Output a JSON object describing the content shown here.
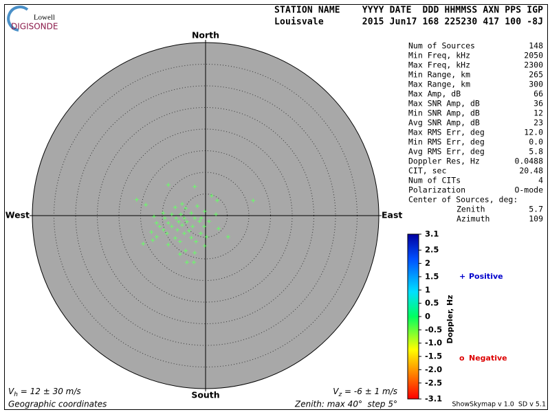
{
  "logo": {
    "line1": "Lowell",
    "line2": "DIGISONDE"
  },
  "header": {
    "line1": "STATION NAME    YYYY DATE  DDD HHMMSS AXN PPS IGP",
    "line2": "Louisvale       2015 Jun17 168 225230 417 100 -8J"
  },
  "stats": {
    "rows": [
      {
        "label": "Num of Sources",
        "value": "148"
      },
      {
        "label": "Min Freq, kHz",
        "value": "2050"
      },
      {
        "label": "Max Freq, kHz",
        "value": "2300"
      },
      {
        "label": "Min Range, km",
        "value": "265"
      },
      {
        "label": "Max Range, km",
        "value": "300"
      },
      {
        "label": "Max Amp, dB",
        "value": "66"
      },
      {
        "label": "Max SNR Amp, dB",
        "value": "36"
      },
      {
        "label": "Min SNR Amp, dB",
        "value": "12"
      },
      {
        "label": "Avg SNR Amp, dB",
        "value": "23"
      },
      {
        "label": "Max RMS Err, deg",
        "value": "12.0"
      },
      {
        "label": "Min RMS Err, deg",
        "value": "0.0"
      },
      {
        "label": "Avg RMS Err, deg",
        "value": "5.8"
      },
      {
        "label": "Doppler Res, Hz",
        "value": "0.0488"
      },
      {
        "label": "CIT, sec",
        "value": "20.48"
      },
      {
        "label": "Num of CITs",
        "value": "4"
      },
      {
        "label": "Polarization",
        "value": "O-mode"
      }
    ],
    "center": {
      "label": "Center of Sources, deg:",
      "rows": [
        {
          "label": "Zenith",
          "value": "5.7"
        },
        {
          "label": "Azimuth",
          "value": "109"
        }
      ]
    }
  },
  "chart_data": {
    "type": "scatter",
    "directions": {
      "north": "North",
      "south": "South",
      "east": "East",
      "west": "West"
    },
    "rlim": [
      0,
      40
    ],
    "rticks": [
      5,
      10,
      15,
      20,
      25,
      30,
      35
    ],
    "series": [
      {
        "color": "#66ff66",
        "marker": "+",
        "x": [
          -8.6,
          -2.5,
          1.4,
          2.7,
          -15.9,
          -13.8,
          11.0,
          -5.4,
          -1.9,
          -7.0,
          -4.6,
          -0.2,
          -9.8,
          -7.8,
          -5.7,
          -3.3,
          2.4,
          -11.9,
          -9.4,
          -6.8,
          -4.9,
          -2.5,
          -1.0,
          -11.3,
          -8.6,
          -6.2,
          -4.3,
          -1.4,
          -10.6,
          -7.8,
          -5.4,
          -3.0,
          -0.3,
          -9.7,
          -6.5,
          -3.8,
          -12.5,
          -8.9,
          -4.9,
          -1.1,
          5.2,
          -11.3,
          -7.0,
          -3.3,
          0.2,
          -12.2,
          -5.9,
          -2.2,
          -14.4,
          -8.6,
          -0.2,
          -4.6,
          -2.5,
          -5.9,
          -4.3,
          -2.7,
          3.0,
          0.8
        ],
        "y": [
          7.1,
          6.7,
          4.6,
          3.5,
          3.7,
          2.5,
          3.5,
          2.7,
          2.2,
          1.9,
          1.7,
          1.0,
          0.6,
          0.3,
          0.3,
          0.6,
          0.3,
          -0.2,
          -0.6,
          -0.6,
          -0.6,
          -0.6,
          -0.6,
          -1.7,
          -1.7,
          -1.4,
          -1.4,
          -1.3,
          -2.5,
          -2.5,
          -2.2,
          -2.5,
          -2.5,
          -3.3,
          -3.3,
          -3.5,
          -3.8,
          -4.1,
          -4.1,
          -4.1,
          -4.9,
          -4.9,
          -5.2,
          -5.1,
          -4.9,
          -5.7,
          -6.0,
          -6.0,
          -6.5,
          -6.7,
          -7.0,
          -8.1,
          -8.6,
          -8.9,
          -10.8,
          -10.8,
          -3.0,
          -1.3
        ]
      }
    ],
    "colorbar": {
      "label": "Doppler, Hz",
      "clim": [
        -3.1,
        3.1
      ],
      "ticks": [
        3.1,
        2.5,
        2,
        1.5,
        1,
        0.5,
        0,
        -0.5,
        {
          "value": -1,
          "label": "-1.0"
        },
        -1.5,
        {
          "value": -2,
          "label": "-2.0"
        },
        -2.5,
        -3.1
      ]
    },
    "legend": [
      {
        "symbol": "+",
        "label": "Positive",
        "color": "#0000cc"
      },
      {
        "symbol": "o",
        "label": "Negative",
        "color": "#dd0000"
      }
    ],
    "footer": {
      "vh_main": "V",
      "vh_sub": "h",
      "vh_rest": " = 12 ± 30 m/s",
      "vz_main": "V",
      "vz_sub": "z",
      "vz_rest": " = -6 ± 1 m/s",
      "coords": "Geographic coordinates",
      "zenith": "Zenith: max 40°  step 5°",
      "version": "ShowSkymap v 1.0  SD v 5.1"
    }
  }
}
